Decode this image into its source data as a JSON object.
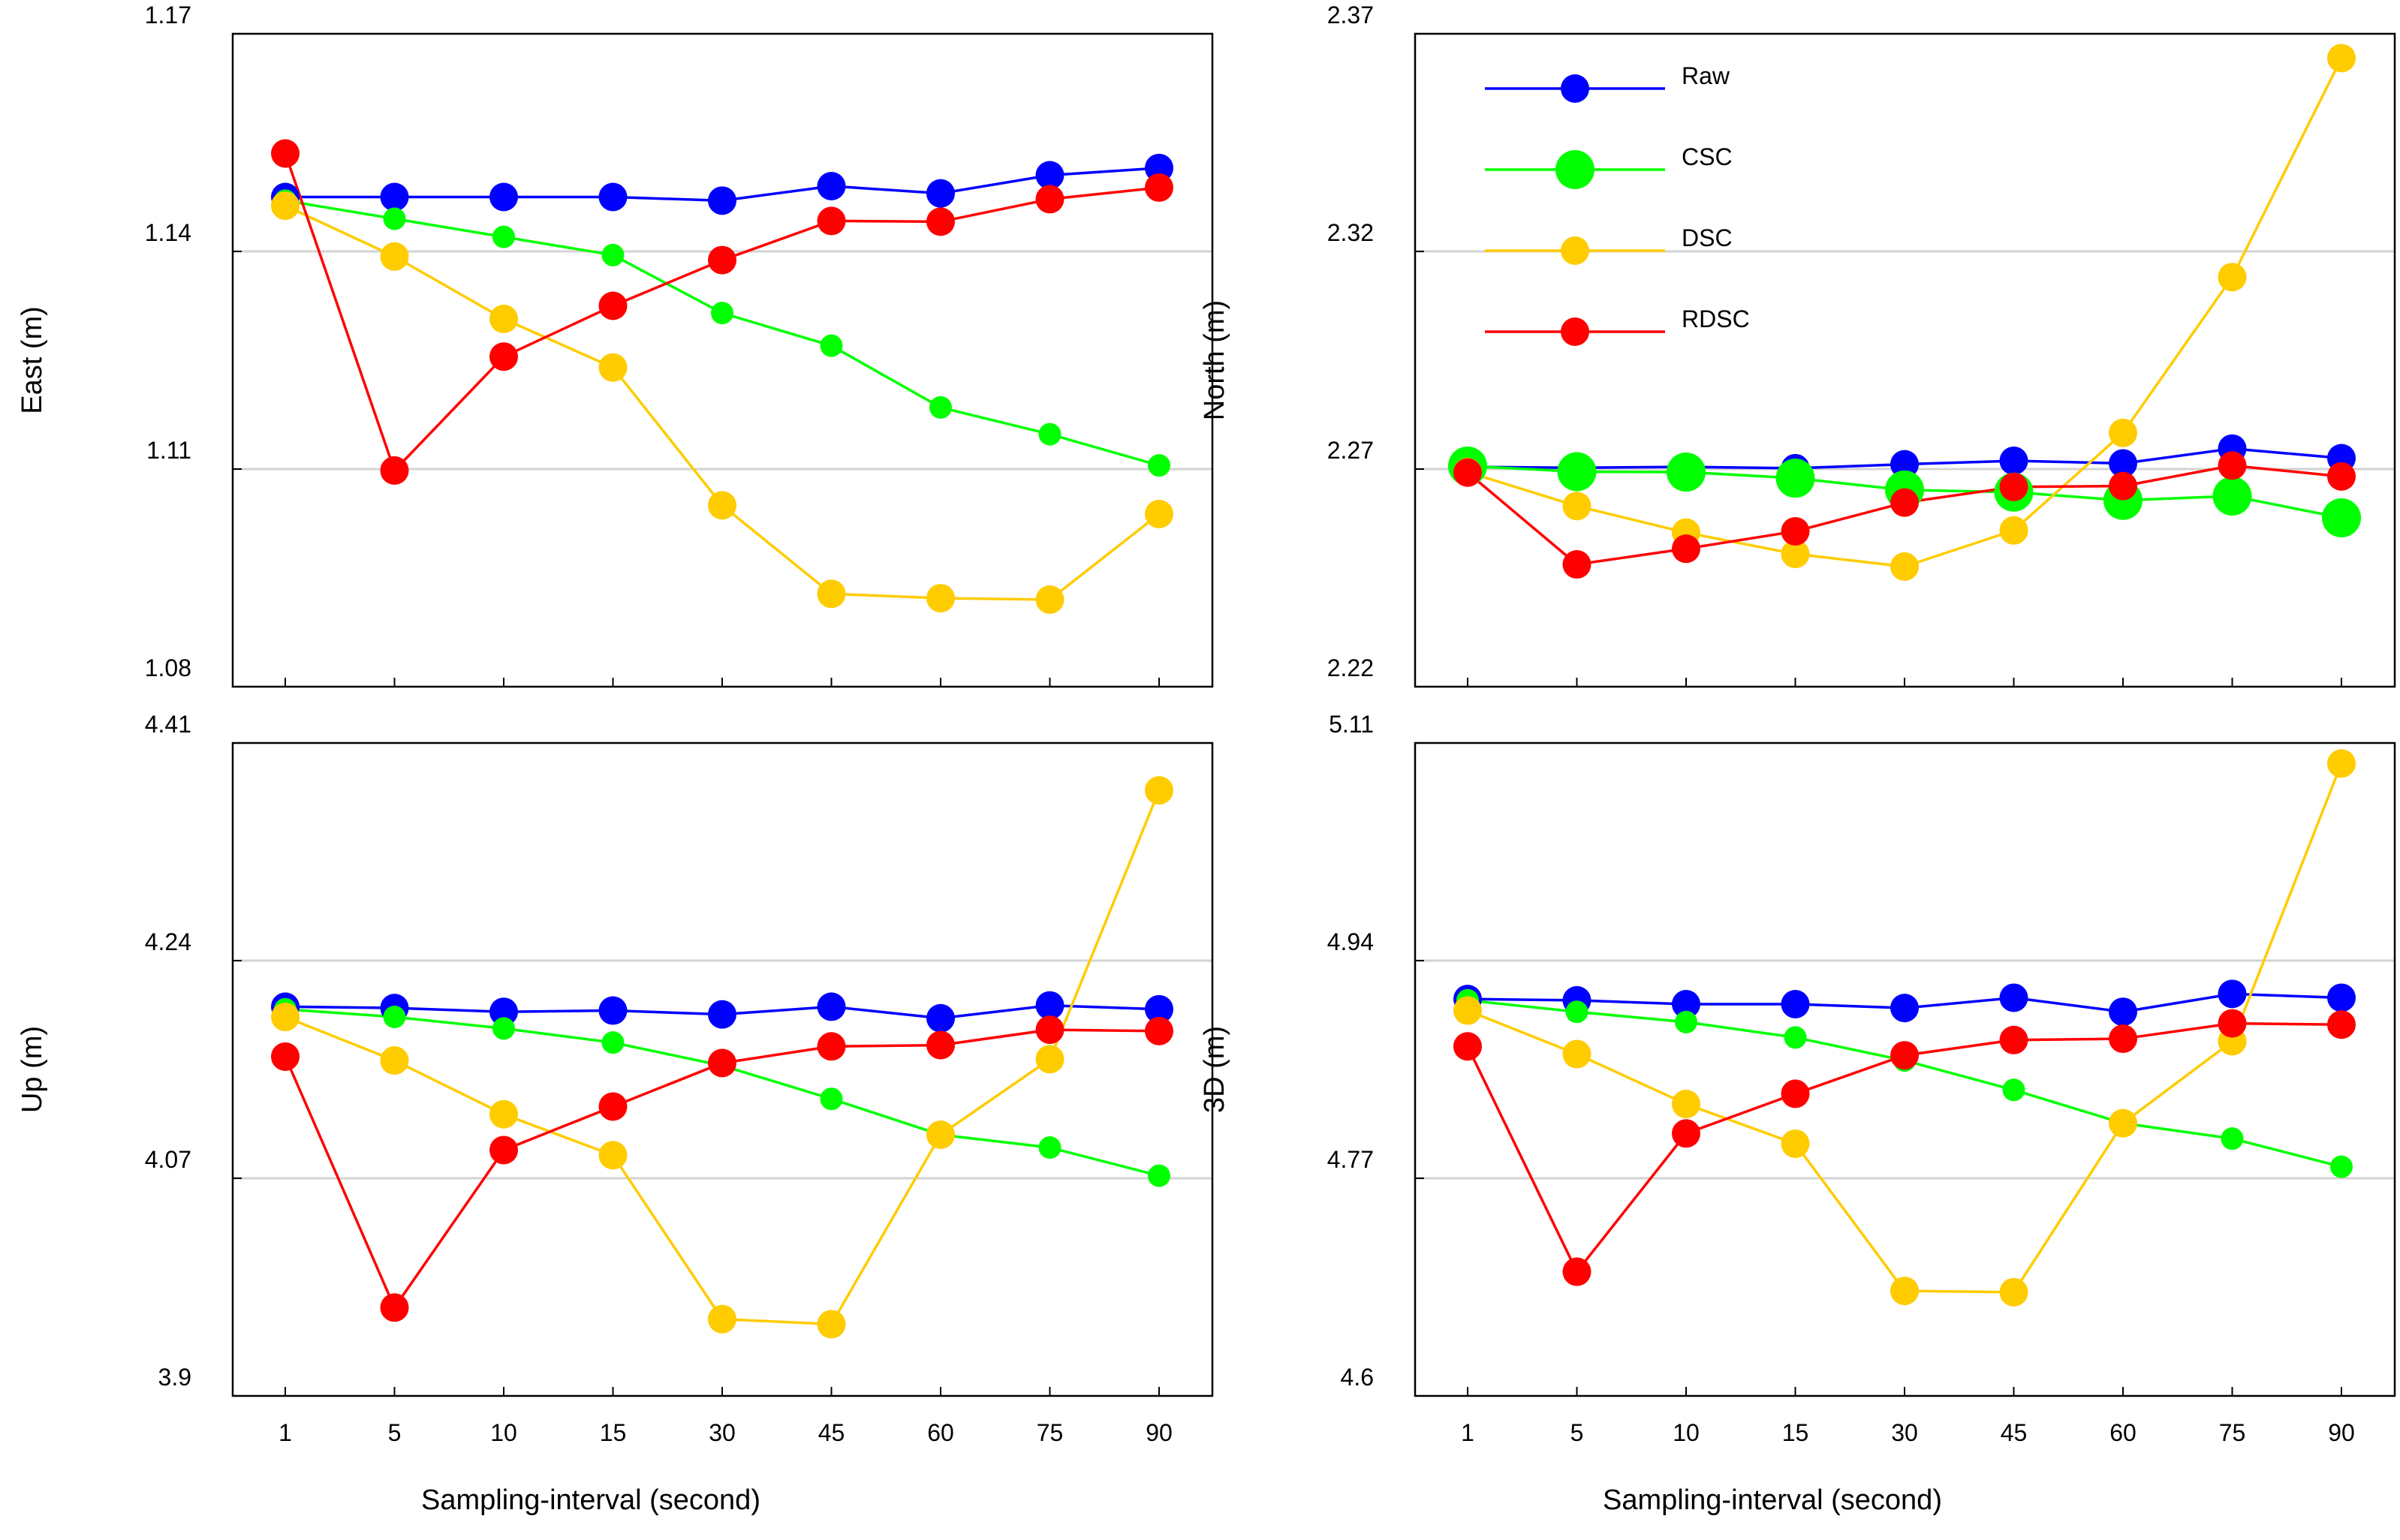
{
  "xlabel": "Sampling-interval (second)",
  "legend": [
    {
      "name": "Raw",
      "color": "#0000ff",
      "marker": "small"
    },
    {
      "name": "CSC",
      "color": "#00ff00",
      "marker": "large"
    },
    {
      "name": "DSC",
      "color": "#ffcc00",
      "marker": "small"
    },
    {
      "name": "RDSC",
      "color": "#ff0000",
      "marker": "small"
    }
  ],
  "chart_data": [
    {
      "type": "line",
      "ylabel": "East (m)",
      "ylim": [
        1.08,
        1.17
      ],
      "yticks": [
        "1.08",
        "1.11",
        "1.14",
        "1.17"
      ],
      "gridlines": [
        1.11,
        1.14
      ],
      "categories": [
        "1",
        "5",
        "10",
        "15",
        "30",
        "45",
        "60",
        "75",
        "90"
      ],
      "series": [
        {
          "name": "Raw",
          "color": "#0000ff",
          "values": [
            1.1475,
            1.1475,
            1.1475,
            1.1475,
            1.147,
            1.149,
            1.148,
            1.1505,
            1.1515
          ]
        },
        {
          "name": "CSC",
          "color": "#00ff00",
          "values": [
            1.147,
            1.1445,
            1.142,
            1.1395,
            1.1315,
            1.127,
            1.1185,
            1.1148,
            1.1105
          ]
        },
        {
          "name": "DSC",
          "color": "#ffcc00",
          "values": [
            1.1463,
            1.1393,
            1.1307,
            1.124,
            1.105,
            1.0928,
            1.0922,
            1.092,
            1.1038
          ]
        },
        {
          "name": "RDSC",
          "color": "#ff0000",
          "values": [
            1.1535,
            1.1098,
            1.1255,
            1.1325,
            1.1388,
            1.1442,
            1.1441,
            1.1472,
            1.1488
          ]
        }
      ]
    },
    {
      "type": "line",
      "ylabel": "North (m)",
      "ylim": [
        2.22,
        2.37
      ],
      "yticks": [
        "2.22",
        "2.27",
        "2.32",
        "2.37"
      ],
      "gridlines": [
        2.27,
        2.32
      ],
      "categories": [
        "1",
        "5",
        "10",
        "15",
        "30",
        "45",
        "60",
        "75",
        "90"
      ],
      "series": [
        {
          "name": "Raw",
          "color": "#0000ff",
          "values": [
            2.2705,
            2.2703,
            2.2705,
            2.2702,
            2.2711,
            2.2719,
            2.2713,
            2.2747,
            2.2725
          ]
        },
        {
          "name": "CSC",
          "color": "#00ff00",
          "values": [
            2.2707,
            2.2694,
            2.2693,
            2.2679,
            2.2652,
            2.2647,
            2.2628,
            2.2638,
            2.2588
          ]
        },
        {
          "name": "DSC",
          "color": "#ffcc00",
          "values": [
            2.2693,
            2.2615,
            2.2554,
            2.2505,
            2.2476,
            2.2559,
            2.2783,
            2.3141,
            2.3644
          ]
        },
        {
          "name": "RDSC",
          "color": "#ff0000",
          "values": [
            2.2692,
            2.2481,
            2.2517,
            2.2557,
            2.2623,
            2.2659,
            2.2661,
            2.2708,
            2.2683
          ]
        }
      ]
    },
    {
      "type": "line",
      "ylabel": "Up (m)",
      "ylim": [
        3.9,
        4.41
      ],
      "yticks": [
        "3.9",
        "4.07",
        "4.24",
        "4.41"
      ],
      "gridlines": [
        4.07,
        4.24
      ],
      "categories": [
        "1",
        "5",
        "10",
        "15",
        "30",
        "45",
        "60",
        "75",
        "90"
      ],
      "series": [
        {
          "name": "Raw",
          "color": "#0000ff",
          "values": [
            4.204,
            4.203,
            4.2,
            4.201,
            4.198,
            4.204,
            4.195,
            4.205,
            4.202
          ]
        },
        {
          "name": "CSC",
          "color": "#00ff00",
          "values": [
            4.202,
            4.196,
            4.187,
            4.176,
            4.158,
            4.132,
            4.104,
            4.094,
            4.072
          ]
        },
        {
          "name": "DSC",
          "color": "#ffcc00",
          "values": [
            4.196,
            4.162,
            4.12,
            4.088,
            3.96,
            3.956,
            4.104,
            4.163,
            4.373
          ]
        },
        {
          "name": "RDSC",
          "color": "#ff0000",
          "values": [
            4.165,
            3.969,
            4.092,
            4.126,
            4.16,
            4.173,
            4.174,
            4.186,
            4.185
          ]
        }
      ]
    },
    {
      "type": "line",
      "ylabel": "3D (m)",
      "ylim": [
        4.6,
        5.11
      ],
      "yticks": [
        "4.6",
        "4.77",
        "4.94",
        "5.11"
      ],
      "gridlines": [
        4.77,
        4.94
      ],
      "categories": [
        "1",
        "5",
        "10",
        "15",
        "30",
        "45",
        "60",
        "75",
        "90"
      ],
      "series": [
        {
          "name": "Raw",
          "color": "#0000ff",
          "values": [
            4.91,
            4.909,
            4.906,
            4.906,
            4.903,
            4.911,
            4.9,
            4.914,
            4.911
          ]
        },
        {
          "name": "CSC",
          "color": "#00ff00",
          "values": [
            4.909,
            4.9,
            4.892,
            4.88,
            4.862,
            4.839,
            4.813,
            4.801,
            4.779
          ]
        },
        {
          "name": "DSC",
          "color": "#ffcc00",
          "values": [
            4.901,
            4.867,
            4.828,
            4.797,
            4.682,
            4.681,
            4.813,
            4.877,
            5.094
          ]
        },
        {
          "name": "RDSC",
          "color": "#ff0000",
          "values": [
            4.873,
            4.697,
            4.805,
            4.836,
            4.866,
            4.878,
            4.879,
            4.891,
            4.89
          ]
        }
      ]
    }
  ]
}
